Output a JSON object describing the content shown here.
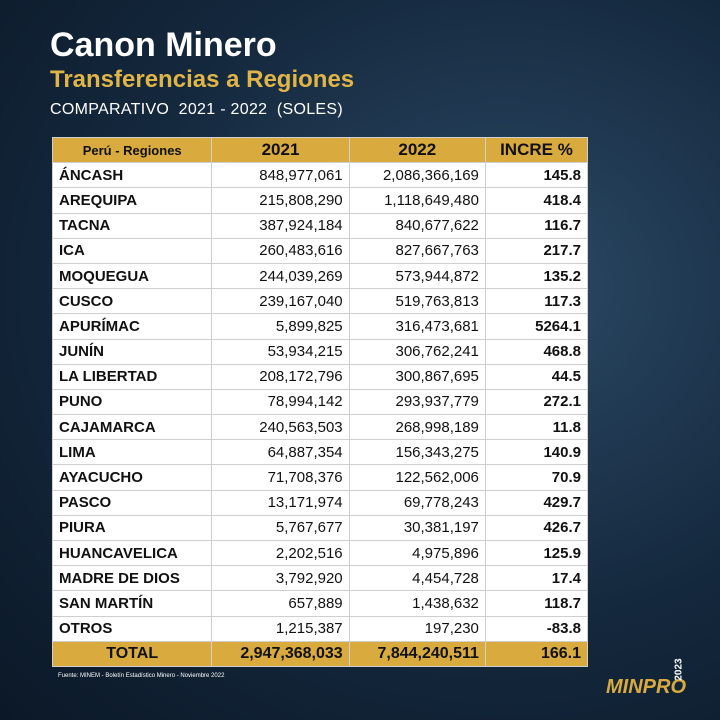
{
  "header": {
    "title": "Canon Minero",
    "subtitle": "Transferencias a Regiones",
    "caption": "COMPARATIVO  2021 - 2022  (SOLES)"
  },
  "table": {
    "columns": [
      "Perú - Regiones",
      "2021",
      "2022",
      "INCRE %"
    ],
    "rows": [
      [
        "ÁNCASH",
        "848,977,061",
        "2,086,366,169",
        "145.8"
      ],
      [
        "AREQUIPA",
        "215,808,290",
        "1,118,649,480",
        "418.4"
      ],
      [
        "TACNA",
        "387,924,184",
        "840,677,622",
        "116.7"
      ],
      [
        "ICA",
        "260,483,616",
        "827,667,763",
        "217.7"
      ],
      [
        "MOQUEGUA",
        "244,039,269",
        "573,944,872",
        "135.2"
      ],
      [
        "CUSCO",
        "239,167,040",
        "519,763,813",
        "117.3"
      ],
      [
        "APURÍMAC",
        "5,899,825",
        "316,473,681",
        "5264.1"
      ],
      [
        "JUNÍN",
        "53,934,215",
        "306,762,241",
        "468.8"
      ],
      [
        "LA LIBERTAD",
        "208,172,796",
        "300,867,695",
        "44.5"
      ],
      [
        "PUNO",
        "78,994,142",
        "293,937,779",
        "272.1"
      ],
      [
        "CAJAMARCA",
        "240,563,503",
        "268,998,189",
        "11.8"
      ],
      [
        "LIMA",
        "64,887,354",
        "156,343,275",
        "140.9"
      ],
      [
        "AYACUCHO",
        "71,708,376",
        "122,562,006",
        "70.9"
      ],
      [
        "PASCO",
        "13,171,974",
        "69,778,243",
        "429.7"
      ],
      [
        "PIURA",
        "5,767,677",
        "30,381,197",
        "426.7"
      ],
      [
        "HUANCAVELICA",
        "2,202,516",
        "4,975,896",
        "125.9"
      ],
      [
        "MADRE DE DIOS",
        "3,792,920",
        "4,454,728",
        "17.4"
      ],
      [
        "SAN MARTÍN",
        "657,889",
        "1,438,632",
        "118.7"
      ],
      [
        "OTROS",
        "1,215,387",
        "197,230",
        "-83.8"
      ]
    ],
    "total": [
      "TOTAL",
      "2,947,368,033",
      "7,844,240,511",
      "166.1"
    ]
  },
  "footer": {
    "source": "Fuente: MINEM - Boletín Estadístico Minero - Noviembre 2022",
    "logo": "MINPRO",
    "logo_year": "2023"
  }
}
